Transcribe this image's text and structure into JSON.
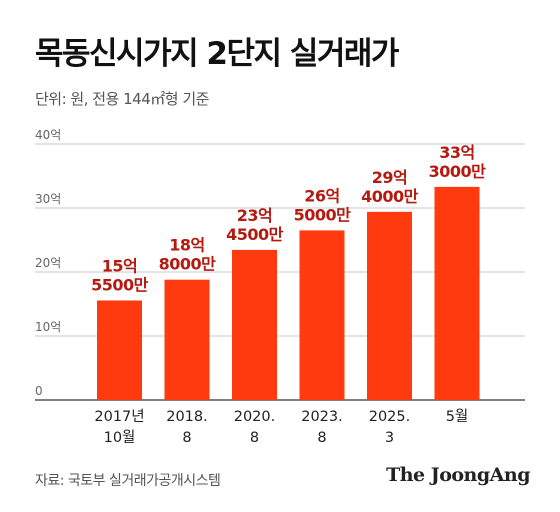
{
  "header": {
    "title": "목동신시가지 2단지 실거래가",
    "unit_note": "단위: 원, 전용 144㎡형 기준"
  },
  "footer": {
    "source": "자료: 국토부 실거래가공개시스템",
    "brand": "The JoongAng"
  },
  "colors": {
    "bar": "#ff3a0e",
    "label": "#b51a10",
    "grid": "#c9c9c9",
    "axis": "#333333",
    "tick_text": "#666666",
    "xtick_text": "#222222"
  },
  "chart_data": {
    "type": "bar",
    "categories": [
      [
        "2017년",
        "10월"
      ],
      [
        "2018.",
        "8"
      ],
      [
        "2020.",
        "8"
      ],
      [
        "2023.",
        "8"
      ],
      [
        "2025.",
        "3"
      ],
      [
        "5월"
      ]
    ],
    "values": [
      15.55,
      18.8,
      23.45,
      26.5,
      29.4,
      33.3
    ],
    "data_labels": [
      [
        "15억",
        "5500만"
      ],
      [
        "18억",
        "8000만"
      ],
      [
        "23억",
        "4500만"
      ],
      [
        "26억",
        "5000만"
      ],
      [
        "29억",
        "4000만"
      ],
      [
        "33억",
        "3000만"
      ]
    ],
    "y_ticks": [
      0,
      10,
      20,
      30,
      40
    ],
    "y_tick_labels": [
      "0",
      "10억",
      "20억",
      "30억",
      "40억"
    ],
    "ylim": [
      0,
      40
    ],
    "grid": true
  }
}
